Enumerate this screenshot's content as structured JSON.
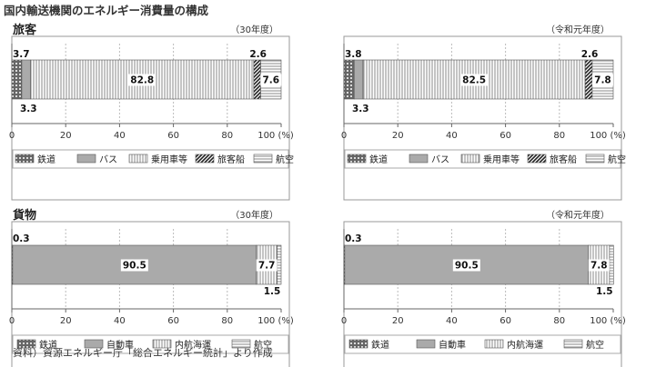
{
  "page_title": "国内輸送機関のエネルギー消費量の構成",
  "source_note": "資料）資源エネルギー庁「総合エネルギー統計」より作成",
  "x_tick_labels": [
    "0",
    "20",
    "40",
    "60",
    "80",
    "100 (%)"
  ],
  "chart_data": [
    {
      "type": "bar",
      "stacked": true,
      "orientation": "horizontal",
      "section_title": "旅客",
      "period_label": "（30年度）",
      "xlim": [
        0,
        100
      ],
      "series": [
        {
          "name": "鉄道",
          "value": 3.7,
          "label": "3.7"
        },
        {
          "name": "バス",
          "value": 3.3,
          "label": "3.3"
        },
        {
          "name": "乗用車等",
          "value": 82.8,
          "label": "82.8"
        },
        {
          "name": "旅客船",
          "value": 2.6,
          "label": "2.6"
        },
        {
          "name": "航空",
          "value": 7.6,
          "label": "7.6"
        }
      ]
    },
    {
      "type": "bar",
      "stacked": true,
      "orientation": "horizontal",
      "section_title": "",
      "period_label": "（令和元年度）",
      "xlim": [
        0,
        100
      ],
      "series": [
        {
          "name": "鉄道",
          "value": 3.8,
          "label": "3.8"
        },
        {
          "name": "バス",
          "value": 3.3,
          "label": "3.3"
        },
        {
          "name": "乗用車等",
          "value": 82.5,
          "label": "82.5"
        },
        {
          "name": "旅客船",
          "value": 2.6,
          "label": "2.6"
        },
        {
          "name": "航空",
          "value": 7.8,
          "label": "7.8"
        }
      ]
    },
    {
      "type": "bar",
      "stacked": true,
      "orientation": "horizontal",
      "section_title": "貨物",
      "period_label": "（30年度）",
      "xlim": [
        0,
        100
      ],
      "series": [
        {
          "name": "鉄道",
          "value": 0.3,
          "label": "0.3"
        },
        {
          "name": "自動車",
          "value": 90.5,
          "label": "90.5"
        },
        {
          "name": "内航海運",
          "value": 7.7,
          "label": "7.7"
        },
        {
          "name": "航空",
          "value": 1.5,
          "label": "1.5"
        }
      ]
    },
    {
      "type": "bar",
      "stacked": true,
      "orientation": "horizontal",
      "section_title": "",
      "period_label": "（令和元年度）",
      "xlim": [
        0,
        100
      ],
      "series": [
        {
          "name": "鉄道",
          "value": 0.3,
          "label": "0.3"
        },
        {
          "name": "自動車",
          "value": 90.5,
          "label": "90.5"
        },
        {
          "name": "内航海運",
          "value": 7.8,
          "label": "7.8"
        },
        {
          "name": "航空",
          "value": 1.5,
          "label": "1.5"
        }
      ]
    }
  ]
}
